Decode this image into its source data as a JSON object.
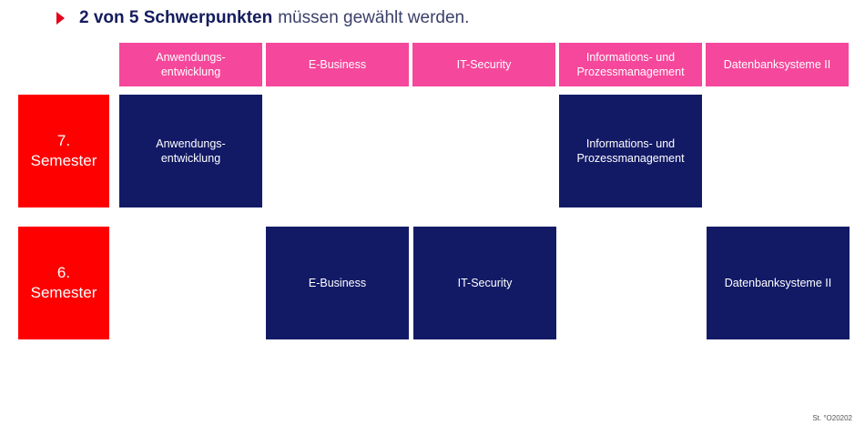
{
  "title": {
    "strong": "2 von 5 Schwerpunkten",
    "rest": "müssen gewählt werden."
  },
  "headers": [
    "Anwendungs-\nentwicklung",
    "E-Business",
    "IT-Security",
    "Informations- und\nProzessmanagement",
    "Datenbanksysteme II"
  ],
  "semesters": [
    {
      "label": "7.\nSemester",
      "cells": [
        "Anwendungs-\nentwicklung",
        "",
        "",
        "Informations- und\nProzessmanagement",
        ""
      ]
    },
    {
      "label": "6.\nSemester",
      "cells": [
        "",
        "E-Business",
        "IT-Security",
        "",
        "Datenbanksysteme II"
      ]
    }
  ],
  "footer": "St. °O20202",
  "colors": {
    "header": "#f5479b",
    "semester": "#ff0000",
    "cell": "#121a66",
    "accent": "#e3001b"
  },
  "icons": {
    "bullet": "triangle-right-icon"
  }
}
